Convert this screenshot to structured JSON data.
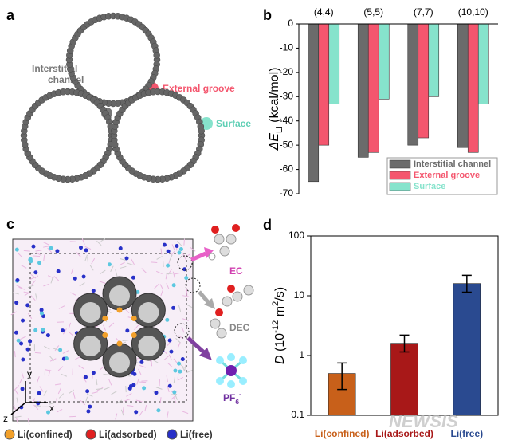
{
  "panel_a": {
    "label": "a",
    "interstitial": [
      "Interstitial",
      "channel"
    ],
    "groove": "External groove",
    "surface": "Surface"
  },
  "panel_c": {
    "label": "c",
    "ec": "EC",
    "dec": "DEC",
    "pf6": [
      {
        "text": "PF"
      },
      {
        "text": "6",
        "sub": true
      },
      {
        "text": "-",
        "sup": true
      }
    ],
    "axes": [
      "y",
      "x",
      "z"
    ],
    "legend": [
      {
        "name": "Li(confined)",
        "color": "#f2a02a"
      },
      {
        "name": "Li(adsorbed)",
        "color": "#e02020"
      },
      {
        "name": "Li(free)",
        "color": "#2830c8"
      }
    ]
  },
  "watermark": "NEWSIS",
  "chart_data": [
    {
      "type": "bar",
      "panel": "b",
      "categories": [
        "(4,4)",
        "(5,5)",
        "(7,7)",
        "(10,10)"
      ],
      "ylabel": [
        {
          "text": "ΔE",
          "italic": true
        },
        {
          "text": "Li",
          "sub": true
        },
        {
          "text": " (kcal/mol)"
        }
      ],
      "ylim": [
        -70,
        0
      ],
      "yticks": [
        0,
        -10,
        -20,
        -30,
        -40,
        -50,
        -60,
        -70
      ],
      "legend": "lower right",
      "series": [
        {
          "name": "Interstitial channel",
          "color": "#6b6b6b",
          "values": [
            -65,
            -55,
            -50,
            -51
          ]
        },
        {
          "name": "External groove",
          "color": "#f4566e",
          "values": [
            -50,
            -53,
            -47,
            -53
          ]
        },
        {
          "name": "Surface",
          "color": "#86e3cc",
          "values": [
            -33,
            -31,
            -30,
            -33
          ]
        }
      ]
    },
    {
      "type": "bar",
      "panel": "d",
      "log": true,
      "categories": [
        "Li(confined)",
        "Li(adsorbed)",
        "Li(free)"
      ],
      "colors": [
        "#c8601a",
        "#a81818",
        "#2a4a90"
      ],
      "ylabel": [
        {
          "text": "D",
          "italic": true
        },
        {
          "text": " (10"
        },
        {
          "text": "-12",
          "sup": true
        },
        {
          "text": " m"
        },
        {
          "text": "2",
          "sup": true
        },
        {
          "text": "/s)"
        }
      ],
      "ylim": [
        0.1,
        100
      ],
      "yticks": [
        0.1,
        1,
        10,
        100
      ],
      "values": [
        0.5,
        1.6,
        16
      ],
      "errors": [
        [
          0.23,
          0.25
        ],
        [
          0.45,
          0.6
        ],
        [
          4.5,
          6
        ]
      ]
    }
  ]
}
